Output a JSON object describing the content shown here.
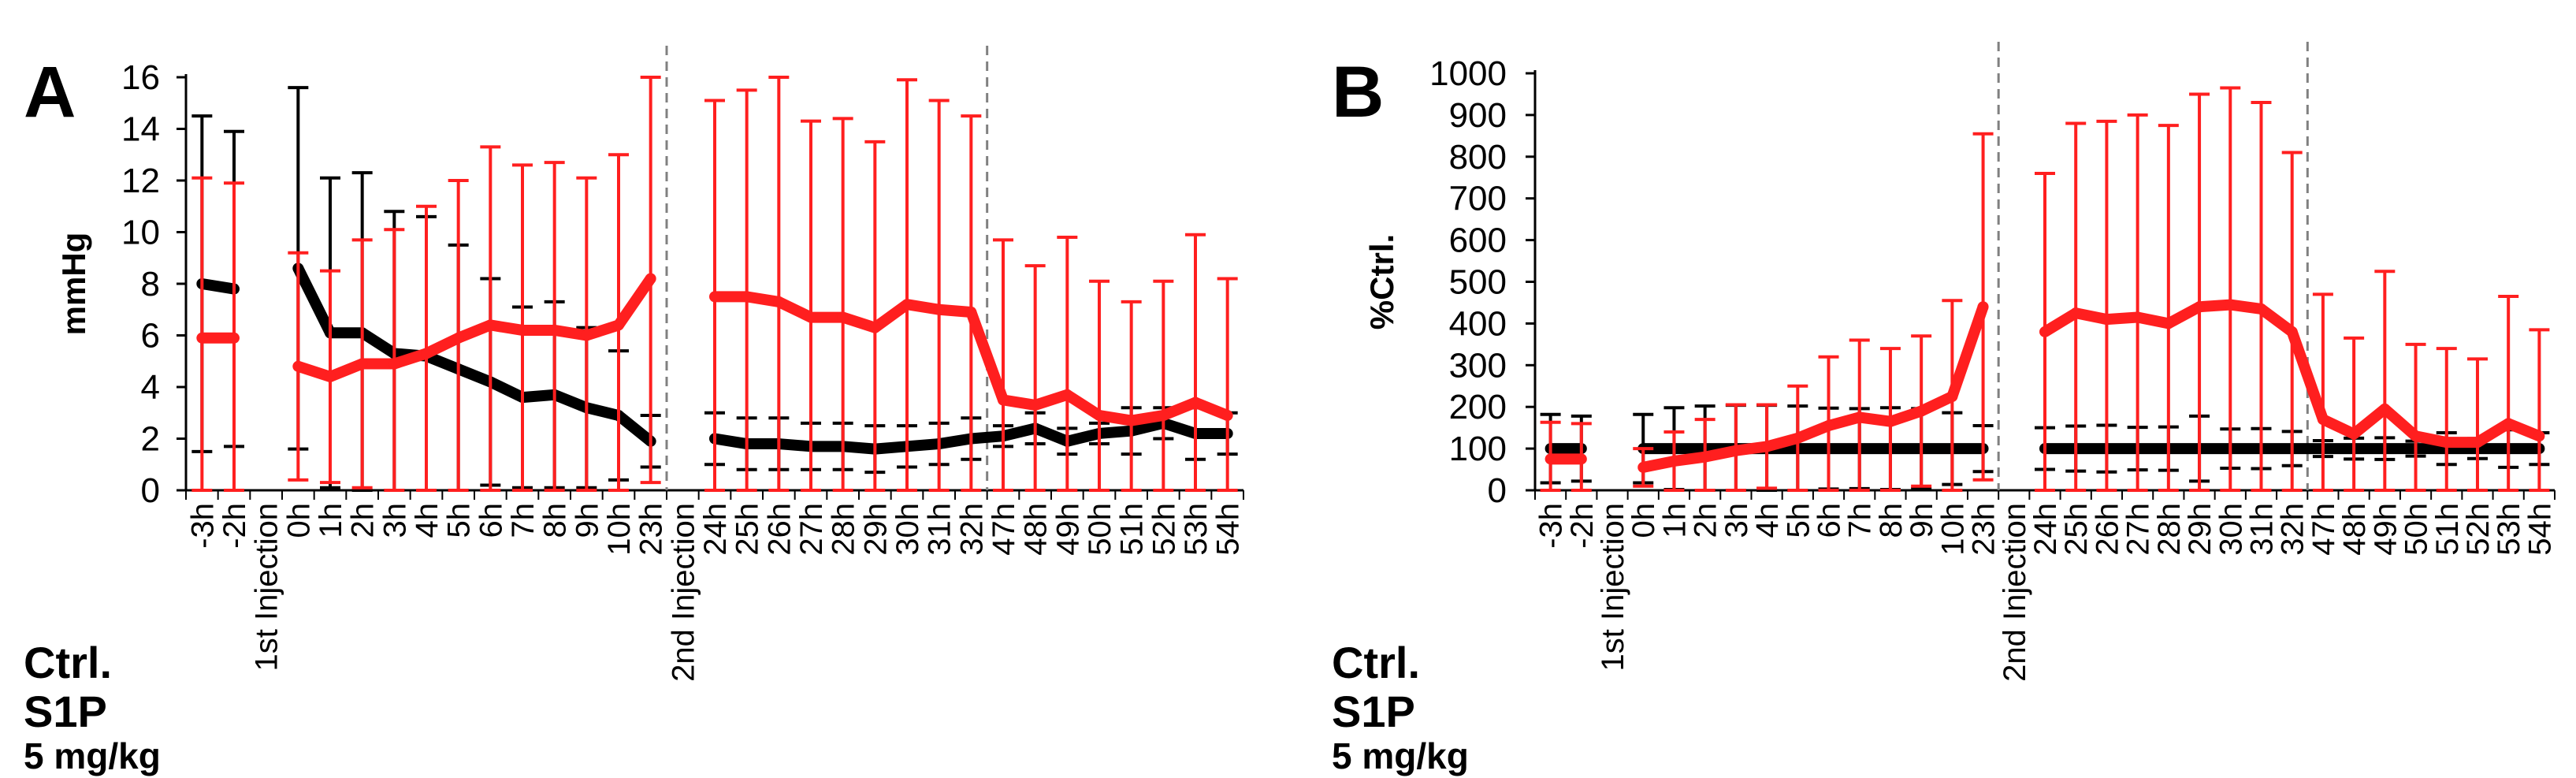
{
  "figure": {
    "legend": {
      "ctrl": "Ctrl.",
      "s1p": "S1P",
      "dose": "5 mg/kg"
    },
    "colors": {
      "ctrl": "#000000",
      "s1p": "#ff1f1f",
      "divider": "#808080"
    }
  },
  "chart_data": [
    {
      "type": "line",
      "panel": "A",
      "title": "",
      "xlabel": "",
      "ylabel": "mmHg",
      "ylim": [
        0,
        16
      ],
      "yticks": [
        0,
        2,
        4,
        6,
        8,
        10,
        12,
        14,
        16
      ],
      "grid": false,
      "error_bars": true,
      "categories": [
        "-3h",
        "-2h",
        "1st Injection",
        "0h",
        "1h",
        "2h",
        "3h",
        "4h",
        "5h",
        "6h",
        "7h",
        "8h",
        "9h",
        "10h",
        "23h",
        "2nd Injection",
        "24h",
        "25h",
        "26h",
        "27h",
        "28h",
        "29h",
        "30h",
        "31h",
        "32h",
        "47h",
        "48h",
        "49h",
        "50h",
        "51h",
        "52h",
        "53h",
        "54h"
      ],
      "dividers_after": [
        "23h",
        "32h"
      ],
      "series": [
        {
          "name": "Ctrl.",
          "values": [
            8.0,
            7.8,
            null,
            8.6,
            6.1,
            6.1,
            5.3,
            5.2,
            4.7,
            4.2,
            3.6,
            3.7,
            3.2,
            2.9,
            1.9,
            null,
            2.0,
            1.8,
            1.8,
            1.7,
            1.7,
            1.6,
            1.7,
            1.8,
            2.0,
            2.1,
            2.4,
            1.9,
            2.2,
            2.3,
            2.6,
            2.2,
            2.2
          ],
          "errors": [
            6.5,
            6.1,
            null,
            7.0,
            6.0,
            6.2,
            5.5,
            5.4,
            4.8,
            4.0,
            3.5,
            3.6,
            3.1,
            2.5,
            1.0,
            null,
            1.0,
            1.0,
            1.0,
            0.9,
            0.9,
            0.9,
            0.8,
            0.8,
            0.8,
            0.4,
            0.6,
            0.5,
            0.4,
            0.9,
            0.6,
            1.0,
            0.8
          ]
        },
        {
          "name": "S1P 5 mg/kg",
          "values": [
            5.9,
            5.9,
            null,
            4.8,
            4.4,
            4.9,
            4.9,
            5.3,
            5.9,
            6.4,
            6.2,
            6.2,
            6.0,
            6.4,
            8.2,
            null,
            7.5,
            7.5,
            7.3,
            6.7,
            6.7,
            6.3,
            7.2,
            7.0,
            6.9,
            3.5,
            3.3,
            3.7,
            2.9,
            2.7,
            2.9,
            3.4,
            2.9
          ],
          "errors": [
            6.2,
            6.0,
            null,
            4.4,
            4.1,
            4.8,
            5.2,
            5.7,
            6.1,
            6.9,
            6.4,
            6.5,
            6.1,
            6.6,
            7.9,
            null,
            7.6,
            8.0,
            8.9,
            7.6,
            7.7,
            7.2,
            8.7,
            8.1,
            7.6,
            6.2,
            5.4,
            6.1,
            5.2,
            4.6,
            5.2,
            6.5,
            5.3
          ]
        }
      ]
    },
    {
      "type": "line",
      "panel": "B",
      "title": "",
      "xlabel": "",
      "ylabel": "%Ctrl.",
      "ylim": [
        0,
        1000
      ],
      "yticks": [
        0,
        100,
        200,
        300,
        400,
        500,
        600,
        700,
        800,
        900,
        1000
      ],
      "grid": false,
      "error_bars": true,
      "categories": [
        "-3h",
        "-2h",
        "1st Injection",
        "0h",
        "1h",
        "2h",
        "3h",
        "4h",
        "5h",
        "6h",
        "7h",
        "8h",
        "9h",
        "10h",
        "23h",
        "2nd Injection",
        "24h",
        "25h",
        "26h",
        "27h",
        "28h",
        "29h",
        "30h",
        "31h",
        "32h",
        "47h",
        "48h",
        "49h",
        "50h",
        "51h",
        "52h",
        "53h",
        "54h"
      ],
      "dividers_after": [
        "23h",
        "32h"
      ],
      "series": [
        {
          "name": "Ctrl.",
          "values": [
            100,
            100,
            null,
            100,
            100,
            100,
            100,
            100,
            100,
            100,
            100,
            100,
            100,
            100,
            100,
            null,
            100,
            100,
            100,
            100,
            100,
            100,
            100,
            100,
            100,
            100,
            100,
            100,
            100,
            100,
            100,
            100,
            100
          ],
          "errors": [
            82,
            78,
            null,
            82,
            98,
            102,
            104,
            104,
            102,
            97,
            96,
            98,
            96,
            86,
            55,
            null,
            50,
            54,
            56,
            51,
            52,
            78,
            47,
            48,
            41,
            19,
            25,
            26,
            18,
            38,
            24,
            45,
            38
          ]
        },
        {
          "name": "S1P 5 mg/kg",
          "values": [
            75,
            75,
            null,
            55,
            70,
            80,
            95,
            105,
            125,
            155,
            175,
            165,
            190,
            225,
            440,
            null,
            380,
            425,
            410,
            415,
            400,
            440,
            445,
            435,
            380,
            170,
            135,
            195,
            130,
            115,
            115,
            160,
            130
          ],
          "errors": [
            88,
            85,
            null,
            45,
            70,
            90,
            110,
            100,
            125,
            165,
            185,
            175,
            180,
            230,
            415,
            null,
            380,
            455,
            475,
            485,
            475,
            510,
            520,
            495,
            430,
            300,
            230,
            330,
            220,
            225,
            200,
            305,
            255
          ]
        }
      ]
    }
  ]
}
